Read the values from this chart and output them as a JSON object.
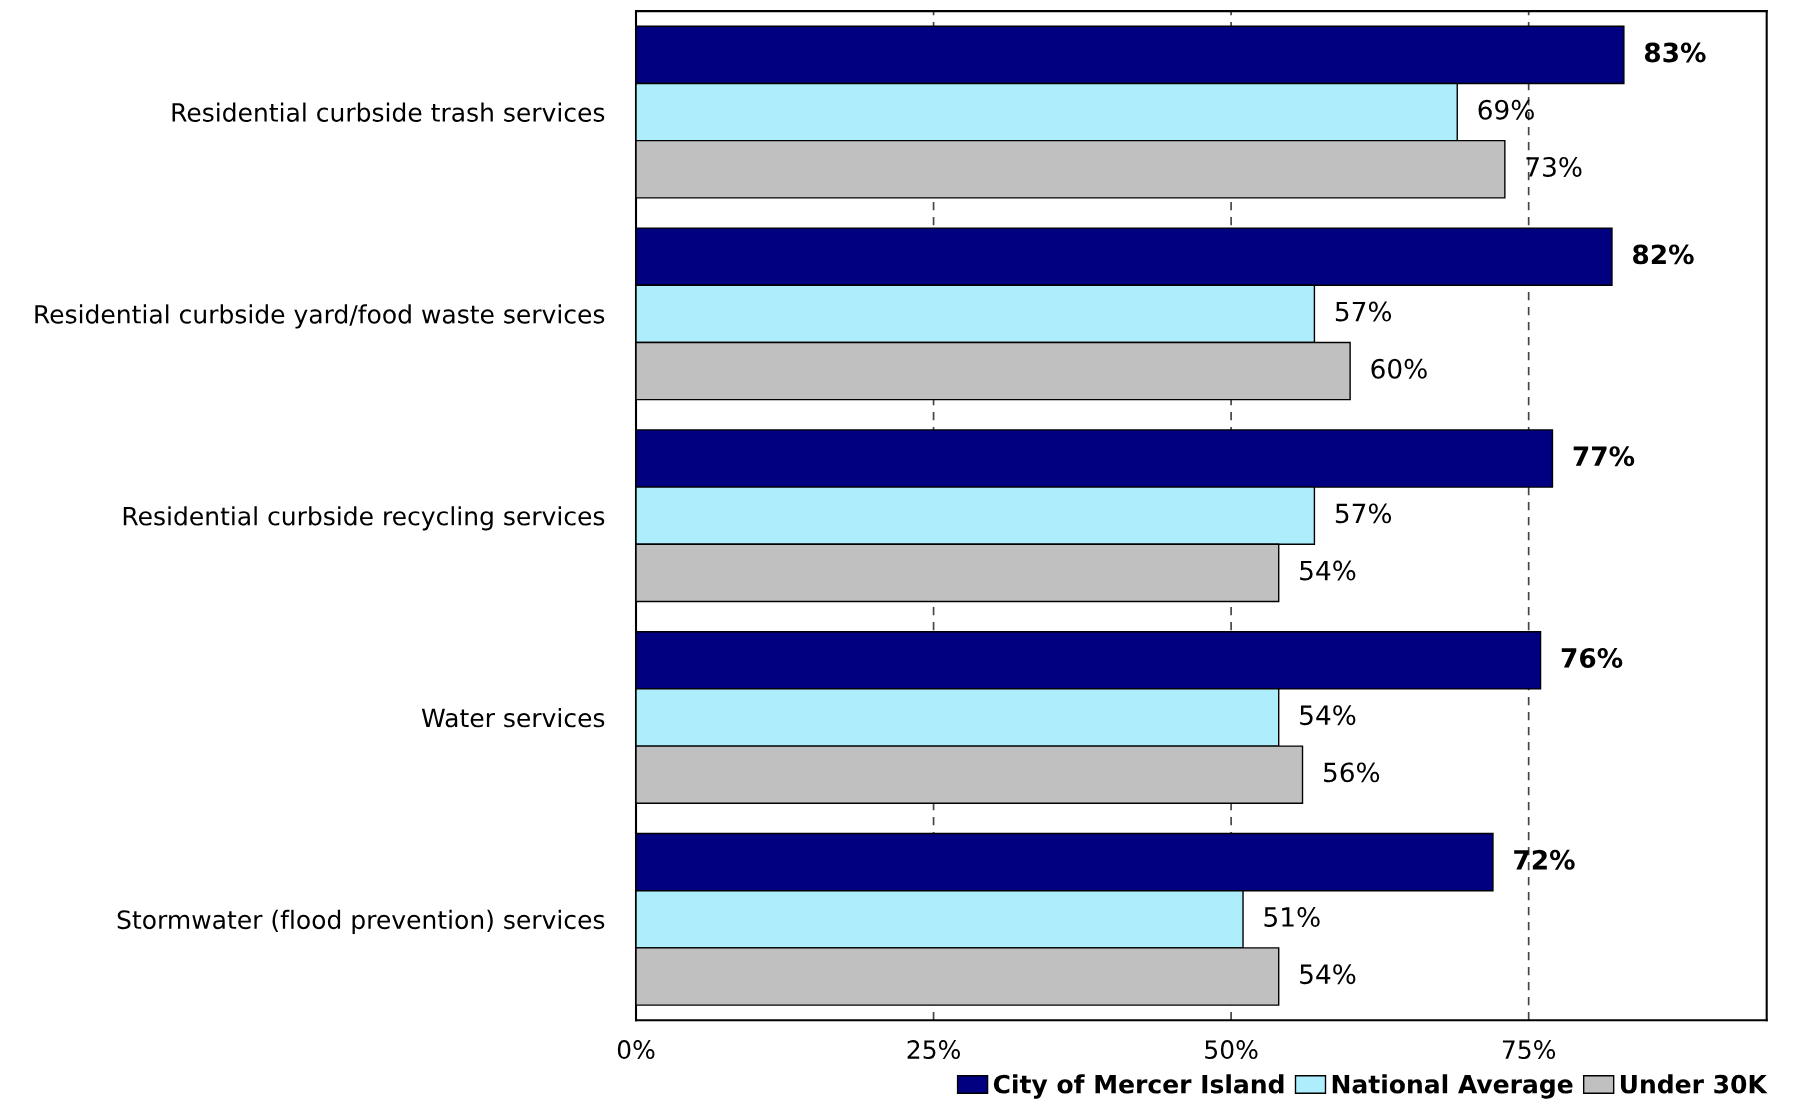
{
  "chart_data": {
    "type": "bar",
    "orientation": "horizontal",
    "categories": [
      "Residential curbside trash services",
      "Residential curbside yard/food waste services",
      "Residential curbside recycling services",
      "Water services",
      "Stormwater (flood prevention) services"
    ],
    "series": [
      {
        "name": "City of Mercer Island",
        "color": "#000080",
        "values": [
          83,
          82,
          77,
          76,
          72
        ],
        "value_labels": [
          "83%",
          "82%",
          "77%",
          "76%",
          "72%"
        ]
      },
      {
        "name": "National Average",
        "color": "#aeeefc",
        "values": [
          69,
          57,
          57,
          54,
          51
        ],
        "value_labels": [
          "69%",
          "57%",
          "57%",
          "54%",
          "51%"
        ]
      },
      {
        "name": "Under 30K",
        "color": "#c0c0c0",
        "values": [
          73,
          60,
          54,
          56,
          54
        ],
        "value_labels": [
          "73%",
          "60%",
          "54%",
          "56%",
          "54%"
        ]
      }
    ],
    "xlim": [
      0,
      95
    ],
    "xticks": [
      {
        "value": 0,
        "label": "0%"
      },
      {
        "value": 25,
        "label": "25%"
      },
      {
        "value": 50,
        "label": "50%"
      },
      {
        "value": 75,
        "label": "75%"
      }
    ],
    "grid": "x",
    "legend": "bottom right"
  }
}
